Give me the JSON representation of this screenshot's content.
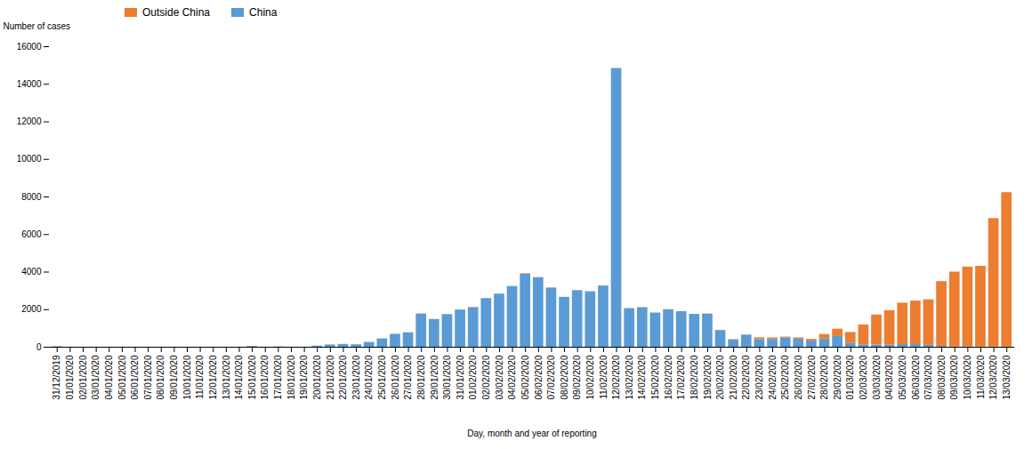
{
  "chart_data": {
    "type": "bar",
    "stacked": true,
    "xlabel": "Day, month and year of reporting",
    "ylabel": "Number of cases",
    "categories": [
      "31/12/2019",
      "01/01/2020",
      "02/01/2020",
      "03/01/2020",
      "04/01/2020",
      "05/01/2020",
      "06/01/2020",
      "07/01/2020",
      "08/01/2020",
      "09/01/2020",
      "10/01/2020",
      "11/01/2020",
      "12/01/2020",
      "13/01/2020",
      "14/01/2020",
      "15/01/2020",
      "16/01/2020",
      "17/01/2020",
      "18/01/2020",
      "19/01/2020",
      "20/01/2020",
      "21/01/2020",
      "22/01/2020",
      "23/01/2020",
      "24/01/2020",
      "25/01/2020",
      "26/01/2020",
      "27/01/2020",
      "28/01/2020",
      "29/01/2020",
      "30/01/2020",
      "31/01/2020",
      "01/02/2020",
      "02/02/2020",
      "03/02/2020",
      "04/02/2020",
      "05/02/2020",
      "06/02/2020",
      "07/02/2020",
      "08/02/2020",
      "09/02/2020",
      "10/02/2020",
      "11/02/2020",
      "12/02/2020",
      "13/02/2020",
      "14/02/2020",
      "15/02/2020",
      "16/02/2020",
      "17/02/2020",
      "18/02/2020",
      "19/02/2020",
      "20/02/2020",
      "21/02/2020",
      "22/02/2020",
      "23/02/2020",
      "24/02/2020",
      "25/02/2020",
      "26/02/2020",
      "27/02/2020",
      "28/02/2020",
      "29/02/2020",
      "01/03/2020",
      "02/03/2020",
      "03/03/2020",
      "04/03/2020",
      "05/03/2020",
      "06/03/2020",
      "07/03/2020",
      "08/03/2020",
      "09/03/2020",
      "10/03/2020",
      "11/03/2020",
      "12/03/2020",
      "13/03/2020"
    ],
    "series": [
      {
        "name": "China",
        "color": "#5B9BD5",
        "values": [
          27,
          0,
          0,
          0,
          0,
          0,
          0,
          0,
          0,
          0,
          0,
          0,
          0,
          0,
          0,
          41,
          0,
          17,
          0,
          0,
          62,
          121,
          149,
          131,
          259,
          444,
          688,
          769,
          1771,
          1476,
          1737,
          1982,
          2101,
          2590,
          2829,
          3235,
          3892,
          3694,
          3143,
          2656,
          3013,
          2955,
          3260,
          14840,
          2055,
          2100,
          1820,
          1999,
          1893,
          1749,
          1764,
          889,
          397,
          648,
          409,
          415,
          502,
          433,
          327,
          440,
          573,
          206,
          130,
          120,
          114,
          143,
          143,
          99,
          44,
          19,
          20,
          16,
          11,
          8
        ]
      },
      {
        "name": "Outside China",
        "color": "#ED7D31",
        "values": [
          0,
          0,
          0,
          0,
          0,
          0,
          0,
          0,
          0,
          0,
          0,
          0,
          0,
          0,
          0,
          0,
          0,
          0,
          0,
          0,
          0,
          0,
          0,
          0,
          0,
          0,
          6,
          0,
          0,
          5,
          8,
          1,
          24,
          0,
          1,
          0,
          25,
          11,
          22,
          0,
          6,
          2,
          2,
          0,
          2,
          13,
          4,
          4,
          0,
          3,
          5,
          13,
          11,
          0,
          93,
          78,
          40,
          66,
          91,
          238,
          386,
          580,
          1054,
          1598,
          1833,
          2204,
          2316,
          2428,
          3448,
          3981,
          4249,
          4291,
          6836,
          8220
        ]
      }
    ],
    "ylim": [
      0,
      16000
    ],
    "yticks": [
      0,
      2000,
      4000,
      6000,
      8000,
      10000,
      12000,
      14000,
      16000
    ],
    "grid": false,
    "legend": "upper left"
  }
}
